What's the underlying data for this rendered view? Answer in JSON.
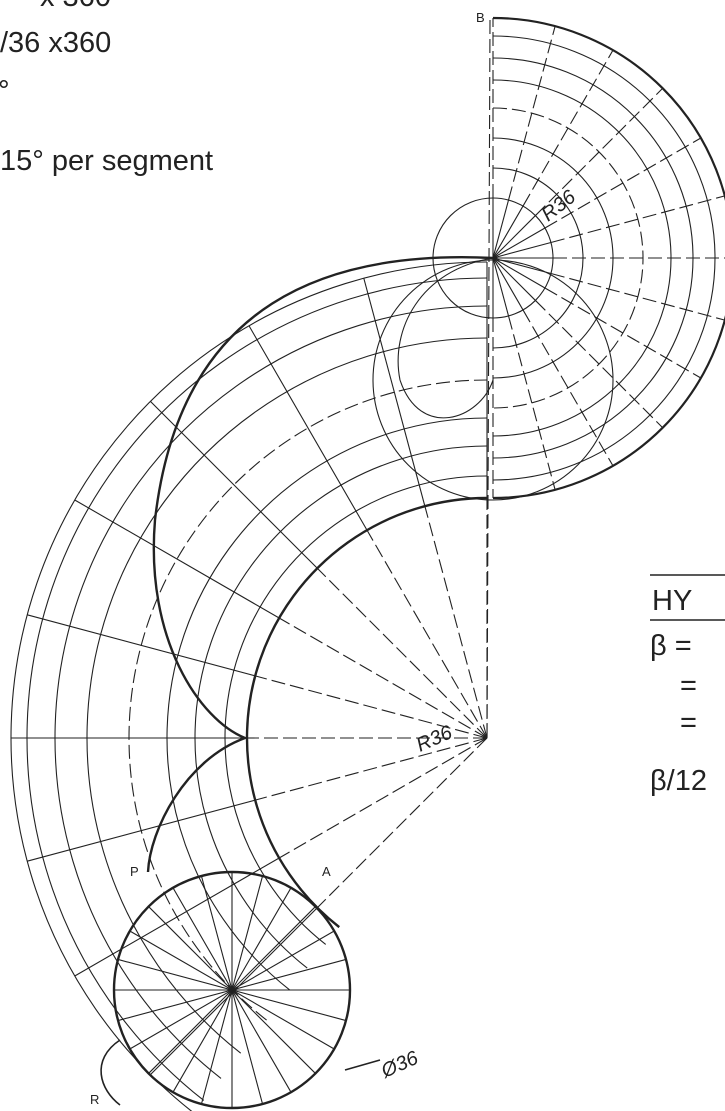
{
  "header_lines": [
    "x 360",
    "/36 x360",
    "°",
    "15° per segment"
  ],
  "labels": {
    "b": "B",
    "r36_top": "R36",
    "r36_center": "R36",
    "p": "P",
    "a": "A",
    "diameter": "Ø36",
    "r": "R"
  },
  "side_text": {
    "heading": "HY",
    "lines": [
      "β =",
      "=",
      "=",
      "β/12"
    ]
  }
}
